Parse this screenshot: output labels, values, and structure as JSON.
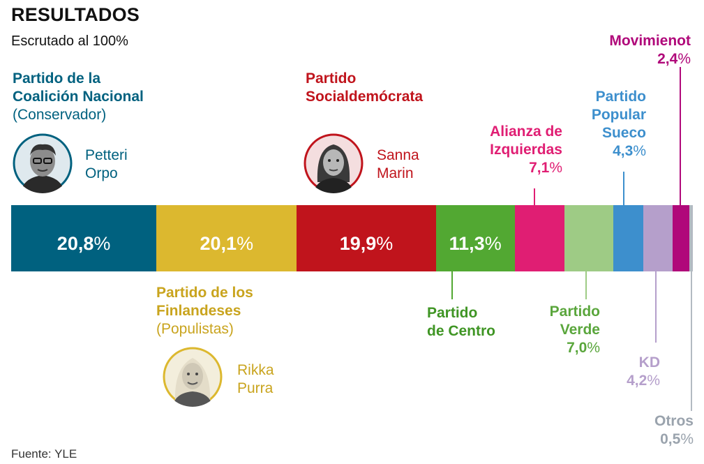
{
  "header": {
    "title": "RESULTADOS",
    "subtitle": "Escrutado al 100%"
  },
  "source": "Fuente: YLE",
  "candidates": {
    "orpo": "Petteri\nOrpo",
    "purra": "Rikka\nPurra",
    "marin": "Sanna\nMarin"
  },
  "colors": {
    "kok": "#00617f",
    "ps": "#dcb82f",
    "sdp": "#c0141c",
    "kesk": "#52a832",
    "vas": "#e01e73",
    "vihr": "#9ecb85",
    "rkp": "#3d8fcd",
    "kd": "#b59fcb",
    "liik": "#b0087a",
    "otros": "#b3bac2"
  },
  "chart_data": {
    "type": "bar",
    "orientation": "stacked-horizontal-100",
    "title": "RESULTADOS",
    "subtitle": "Escrutado al 100%",
    "categories": [
      "Partido de la Coalición Nacional (Conservador)",
      "Partido de los Finlandeses (Populistas)",
      "Partido Socialdemócrata",
      "Partido de Centro",
      "Alianza de Izquierdas",
      "Partido Verde",
      "Partido Popular Sueco",
      "KD",
      "Movimienot",
      "Otros"
    ],
    "values": [
      20.8,
      20.1,
      19.9,
      11.3,
      7.1,
      7.0,
      4.3,
      4.2,
      2.4,
      0.5
    ],
    "value_labels": [
      "20,8%",
      "20,1%",
      "19,9%",
      "11,3%",
      "7,1%",
      "7,0%",
      "4,3%",
      "4,2%",
      "2,4%",
      "0,5%"
    ],
    "party_names": {
      "kok": {
        "name": "Partido de la\nCoalición Nacional",
        "sub": "(Conservador)"
      },
      "ps": {
        "name": "Partido de los\nFinlandeses",
        "sub": "(Populistas)"
      },
      "sdp": {
        "name": "Partido\nSocialdemócrata"
      },
      "kesk": {
        "name": "Partido\nde Centro"
      },
      "vas": {
        "name": "Alianza de\nIzquierdas"
      },
      "vihr": {
        "name": "Partido\nVerde"
      },
      "rkp": {
        "name": "Partido\nPopular\nSueco"
      },
      "kd": {
        "name": "KD"
      },
      "liik": {
        "name": "Movimienot"
      },
      "otros": {
        "name": "Otros"
      }
    },
    "xlim": [
      0,
      100
    ],
    "grid": false,
    "legend": "none"
  }
}
